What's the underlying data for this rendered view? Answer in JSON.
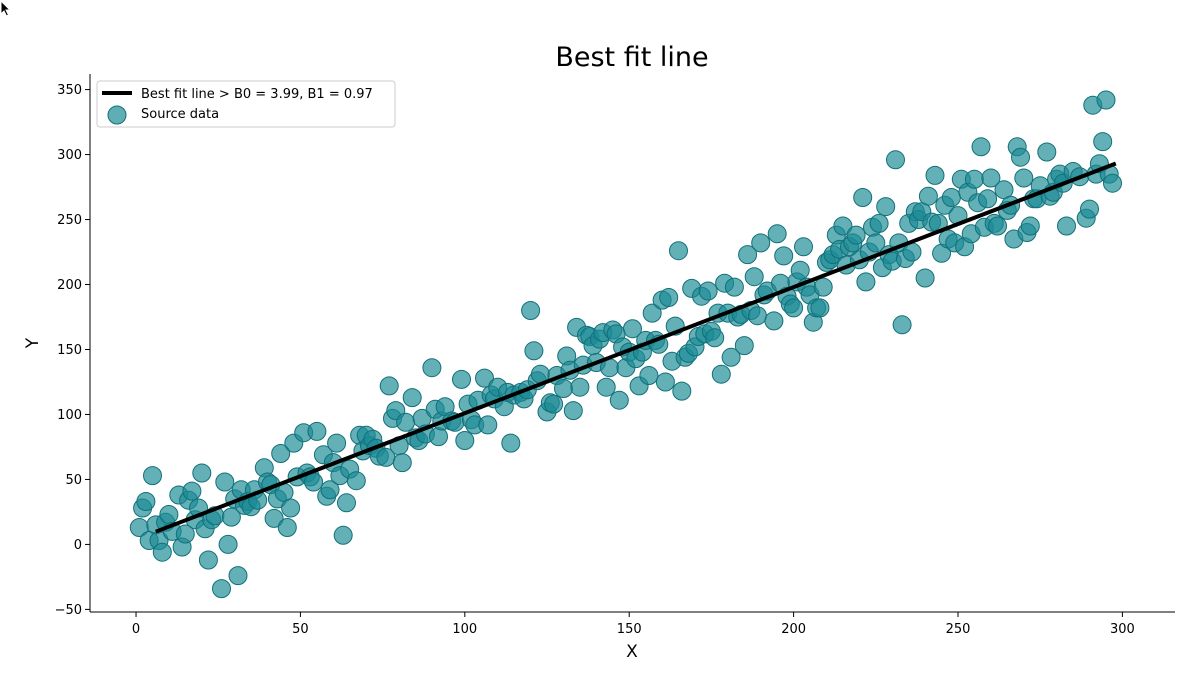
{
  "colors": {
    "point_fill": "#1b8a95",
    "point_stroke": "#137079",
    "line": "#000000",
    "axis": "#000000",
    "legend_border": "#cccccc"
  },
  "chart_data": {
    "type": "scatter",
    "title": "Best fit line",
    "xlabel": "X",
    "ylabel": "Y",
    "xlim": [
      -14,
      316
    ],
    "ylim": [
      -52,
      362
    ],
    "xticks": [
      0,
      50,
      100,
      150,
      200,
      250,
      300
    ],
    "yticks": [
      -50,
      0,
      50,
      100,
      150,
      200,
      250,
      300,
      350
    ],
    "grid": false,
    "legend_placement": "upper-left",
    "line": {
      "name": "Best fit line > B0 = 3.99, B1 = 0.97",
      "x": [
        6,
        298
      ],
      "y": [
        9.8,
        293.1
      ]
    },
    "series": [
      {
        "name": "Source data",
        "points": [
          [
            1,
            13
          ],
          [
            2,
            28
          ],
          [
            3,
            33
          ],
          [
            4,
            3
          ],
          [
            5,
            53
          ],
          [
            6,
            15
          ],
          [
            7,
            3
          ],
          [
            8,
            -6
          ],
          [
            9,
            17
          ],
          [
            10,
            23
          ],
          [
            11,
            10
          ],
          [
            13,
            38
          ],
          [
            14,
            -2
          ],
          [
            15,
            8
          ],
          [
            16,
            34
          ],
          [
            17,
            41
          ],
          [
            18,
            19
          ],
          [
            19,
            28
          ],
          [
            20,
            55
          ],
          [
            21,
            12
          ],
          [
            22,
            -12
          ],
          [
            23,
            19
          ],
          [
            24,
            22
          ],
          [
            26,
            -34
          ],
          [
            27,
            48
          ],
          [
            28,
            0
          ],
          [
            29,
            21
          ],
          [
            30,
            35
          ],
          [
            31,
            -24
          ],
          [
            32,
            42
          ],
          [
            33,
            30
          ],
          [
            34,
            33
          ],
          [
            35,
            29
          ],
          [
            36,
            42
          ],
          [
            37,
            34
          ],
          [
            39,
            59
          ],
          [
            40,
            48
          ],
          [
            41,
            46
          ],
          [
            42,
            20
          ],
          [
            43,
            35
          ],
          [
            44,
            70
          ],
          [
            45,
            40
          ],
          [
            46,
            13
          ],
          [
            47,
            28
          ],
          [
            48,
            78
          ],
          [
            49,
            52
          ],
          [
            51,
            86
          ],
          [
            52,
            55
          ],
          [
            53,
            52
          ],
          [
            54,
            48
          ],
          [
            55,
            87
          ],
          [
            57,
            69
          ],
          [
            58,
            37
          ],
          [
            59,
            42
          ],
          [
            60,
            63
          ],
          [
            61,
            78
          ],
          [
            62,
            53
          ],
          [
            63,
            7
          ],
          [
            64,
            32
          ],
          [
            65,
            58
          ],
          [
            67,
            49
          ],
          [
            68,
            84
          ],
          [
            69,
            72
          ],
          [
            70,
            84
          ],
          [
            71,
            76
          ],
          [
            72,
            81
          ],
          [
            73,
            74
          ],
          [
            74,
            68
          ],
          [
            76,
            67
          ],
          [
            77,
            122
          ],
          [
            78,
            97
          ],
          [
            79,
            103
          ],
          [
            80,
            76
          ],
          [
            81,
            63
          ],
          [
            82,
            94
          ],
          [
            84,
            113
          ],
          [
            85,
            82
          ],
          [
            86,
            80
          ],
          [
            87,
            97
          ],
          [
            88,
            85
          ],
          [
            90,
            136
          ],
          [
            91,
            104
          ],
          [
            92,
            83
          ],
          [
            93,
            95
          ],
          [
            94,
            106
          ],
          [
            96,
            95
          ],
          [
            97,
            94
          ],
          [
            99,
            127
          ],
          [
            100,
            80
          ],
          [
            101,
            108
          ],
          [
            102,
            96
          ],
          [
            103,
            92
          ],
          [
            104,
            111
          ],
          [
            106,
            128
          ],
          [
            107,
            92
          ],
          [
            108,
            115
          ],
          [
            109,
            112
          ],
          [
            110,
            121
          ],
          [
            112,
            106
          ],
          [
            113,
            117
          ],
          [
            114,
            78
          ],
          [
            115,
            115
          ],
          [
            117,
            117
          ],
          [
            118,
            112
          ],
          [
            119,
            119
          ],
          [
            120,
            180
          ],
          [
            121,
            149
          ],
          [
            122,
            126
          ],
          [
            123,
            131
          ],
          [
            125,
            102
          ],
          [
            126,
            109
          ],
          [
            127,
            108
          ],
          [
            128,
            130
          ],
          [
            130,
            120
          ],
          [
            131,
            145
          ],
          [
            132,
            134
          ],
          [
            133,
            103
          ],
          [
            134,
            167
          ],
          [
            135,
            121
          ],
          [
            136,
            138
          ],
          [
            137,
            161
          ],
          [
            138,
            160
          ],
          [
            139,
            153
          ],
          [
            140,
            140
          ],
          [
            141,
            158
          ],
          [
            142,
            163
          ],
          [
            143,
            121
          ],
          [
            144,
            136
          ],
          [
            145,
            165
          ],
          [
            146,
            162
          ],
          [
            147,
            111
          ],
          [
            148,
            152
          ],
          [
            149,
            136
          ],
          [
            150,
            148
          ],
          [
            151,
            166
          ],
          [
            152,
            143
          ],
          [
            153,
            122
          ],
          [
            154,
            148
          ],
          [
            155,
            157
          ],
          [
            156,
            130
          ],
          [
            157,
            178
          ],
          [
            158,
            157
          ],
          [
            159,
            154
          ],
          [
            160,
            188
          ],
          [
            161,
            125
          ],
          [
            162,
            190
          ],
          [
            163,
            141
          ],
          [
            164,
            168
          ],
          [
            165,
            226
          ],
          [
            166,
            118
          ],
          [
            167,
            144
          ],
          [
            168,
            147
          ],
          [
            169,
            197
          ],
          [
            170,
            152
          ],
          [
            171,
            160
          ],
          [
            172,
            191
          ],
          [
            173,
            162
          ],
          [
            174,
            195
          ],
          [
            175,
            164
          ],
          [
            176,
            159
          ],
          [
            177,
            178
          ],
          [
            178,
            131
          ],
          [
            179,
            201
          ],
          [
            180,
            178
          ],
          [
            181,
            144
          ],
          [
            182,
            198
          ],
          [
            183,
            175
          ],
          [
            184,
            177
          ],
          [
            185,
            153
          ],
          [
            186,
            223
          ],
          [
            187,
            180
          ],
          [
            188,
            206
          ],
          [
            189,
            176
          ],
          [
            190,
            232
          ],
          [
            191,
            192
          ],
          [
            192,
            195
          ],
          [
            194,
            172
          ],
          [
            195,
            239
          ],
          [
            196,
            201
          ],
          [
            197,
            222
          ],
          [
            198,
            191
          ],
          [
            199,
            185
          ],
          [
            200,
            182
          ],
          [
            201,
            202
          ],
          [
            202,
            211
          ],
          [
            203,
            229
          ],
          [
            204,
            198
          ],
          [
            205,
            192
          ],
          [
            206,
            171
          ],
          [
            207,
            182
          ],
          [
            208,
            182
          ],
          [
            209,
            198
          ],
          [
            210,
            217
          ],
          [
            211,
            219
          ],
          [
            212,
            223
          ],
          [
            213,
            238
          ],
          [
            214,
            227
          ],
          [
            215,
            245
          ],
          [
            216,
            215
          ],
          [
            217,
            229
          ],
          [
            218,
            232
          ],
          [
            219,
            238
          ],
          [
            220,
            219
          ],
          [
            221,
            267
          ],
          [
            222,
            202
          ],
          [
            223,
            225
          ],
          [
            224,
            244
          ],
          [
            225,
            232
          ],
          [
            226,
            247
          ],
          [
            227,
            213
          ],
          [
            228,
            260
          ],
          [
            229,
            223
          ],
          [
            230,
            218
          ],
          [
            231,
            296
          ],
          [
            232,
            232
          ],
          [
            233,
            169
          ],
          [
            234,
            220
          ],
          [
            235,
            247
          ],
          [
            236,
            225
          ],
          [
            237,
            256
          ],
          [
            238,
            250
          ],
          [
            239,
            256
          ],
          [
            240,
            205
          ],
          [
            241,
            268
          ],
          [
            242,
            248
          ],
          [
            243,
            284
          ],
          [
            244,
            247
          ],
          [
            245,
            224
          ],
          [
            246,
            261
          ],
          [
            247,
            235
          ],
          [
            248,
            267
          ],
          [
            249,
            232
          ],
          [
            250,
            253
          ],
          [
            251,
            281
          ],
          [
            252,
            229
          ],
          [
            253,
            271
          ],
          [
            254,
            239
          ],
          [
            255,
            281
          ],
          [
            256,
            263
          ],
          [
            257,
            306
          ],
          [
            258,
            244
          ],
          [
            259,
            266
          ],
          [
            260,
            282
          ],
          [
            261,
            247
          ],
          [
            262,
            245
          ],
          [
            264,
            273
          ],
          [
            265,
            257
          ],
          [
            266,
            261
          ],
          [
            267,
            235
          ],
          [
            268,
            306
          ],
          [
            269,
            298
          ],
          [
            270,
            282
          ],
          [
            271,
            240
          ],
          [
            272,
            245
          ],
          [
            273,
            266
          ],
          [
            274,
            266
          ],
          [
            275,
            276
          ],
          [
            277,
            302
          ],
          [
            278,
            268
          ],
          [
            279,
            271
          ],
          [
            280,
            281
          ],
          [
            281,
            285
          ],
          [
            282,
            278
          ],
          [
            283,
            245
          ],
          [
            285,
            287
          ],
          [
            287,
            283
          ],
          [
            289,
            251
          ],
          [
            290,
            258
          ],
          [
            291,
            338
          ],
          [
            292,
            285
          ],
          [
            293,
            293
          ],
          [
            294,
            310
          ],
          [
            295,
            342
          ],
          [
            296,
            285
          ],
          [
            297,
            278
          ]
        ]
      }
    ]
  }
}
